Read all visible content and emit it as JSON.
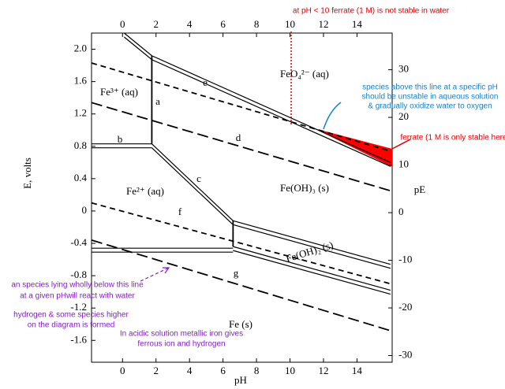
{
  "chart_data": {
    "type": "line",
    "x_label": "pH",
    "y_label": "E, volts",
    "y2_label": "pE",
    "xlim": [
      -1.85,
      16.1
    ],
    "ylim": [
      -1.87,
      2.2
    ],
    "y2lim": [
      -31.4,
      37.7
    ],
    "xticks": [
      0,
      2,
      4,
      6,
      8,
      10,
      12,
      14
    ],
    "yticks": [
      {
        "value": 2,
        "label": "2.0"
      },
      1.6,
      1.2,
      0.8,
      0.4,
      0,
      -0.4,
      -0.8,
      -1.2,
      -1.6
    ],
    "y2ticks": [
      30,
      20,
      10,
      0,
      -10,
      -20,
      -30
    ],
    "line_color": "#000000",
    "series": [
      {
        "label": "e",
        "style": "double",
        "x": [
          0.1,
          1.75,
          16
        ],
        "values": [
          2.2,
          1.92,
          0.6
        ]
      },
      {
        "label": "a",
        "style": "solid",
        "x": [
          1.75,
          1.75
        ],
        "values": [
          1.92,
          0.83
        ]
      },
      {
        "label": "b",
        "style": "double",
        "x": [
          -1.85,
          1.75
        ],
        "values": [
          0.83,
          0.83
        ]
      },
      {
        "label": "c",
        "style": "double",
        "x": [
          1.75,
          6.6
        ],
        "values": [
          0.83,
          -0.12
        ]
      },
      {
        "style": "double",
        "x": [
          6.6,
          16
        ],
        "values": [
          -0.12,
          -0.66
        ]
      },
      {
        "style": "solid",
        "x": [
          6.6,
          6.6
        ],
        "values": [
          -0.12,
          -0.44
        ]
      },
      {
        "style": "double",
        "x": [
          -1.85,
          6.6
        ],
        "values": [
          -0.46,
          -0.46
        ]
      },
      {
        "style": "double",
        "x": [
          6.6,
          16
        ],
        "values": [
          -0.44,
          -0.98
        ]
      },
      {
        "style": "dash",
        "x": [
          -1.85,
          16
        ],
        "values": [
          1.83,
          0.74
        ]
      },
      {
        "label": "d",
        "style": "long-dash",
        "x": [
          -1.85,
          16
        ],
        "values": [
          1.34,
          0.25
        ]
      },
      {
        "label": "f",
        "style": "dash",
        "x": [
          -1.85,
          16
        ],
        "values": [
          0.1,
          -0.9
        ]
      },
      {
        "label": "g",
        "style": "long-dash",
        "x": [
          -1.85,
          16
        ],
        "values": [
          -0.36,
          -1.48
        ]
      }
    ],
    "regions": [
      "Fe³⁺ (aq)",
      "FeO₄²⁻ (aq)",
      "Fe²⁺ (aq)",
      "Fe(OH)₃ (s)",
      "Fe(OH)₂ (s)",
      "Fe (s)"
    ],
    "annotations": [
      {
        "color": "#e00000",
        "lines": [
          "at pH < 10 ferrate (1 M) is not stable in water"
        ]
      },
      {
        "color": "#1a7fc4",
        "lines": [
          "species above this line at a specific pH",
          "should be unstable in aqueous solution",
          "& gradually oxidize water to oxygen"
        ]
      },
      {
        "color": "#e00000",
        "lines": [
          "ferrate (1 M is only stable here"
        ]
      },
      {
        "color": "#8a1ad0",
        "lines": [
          "an species lying wholly below this line",
          "at a given pHwill  react with water"
        ]
      },
      {
        "color": "#8a1ad0",
        "lines": [
          "hydrogen & some species higher",
          "on the diagram is formed"
        ]
      },
      {
        "color": "#8a1ad0",
        "lines": [
          "In acidic solution metallic iron gives",
          "ferrous ion and hydrogen"
        ]
      }
    ]
  }
}
